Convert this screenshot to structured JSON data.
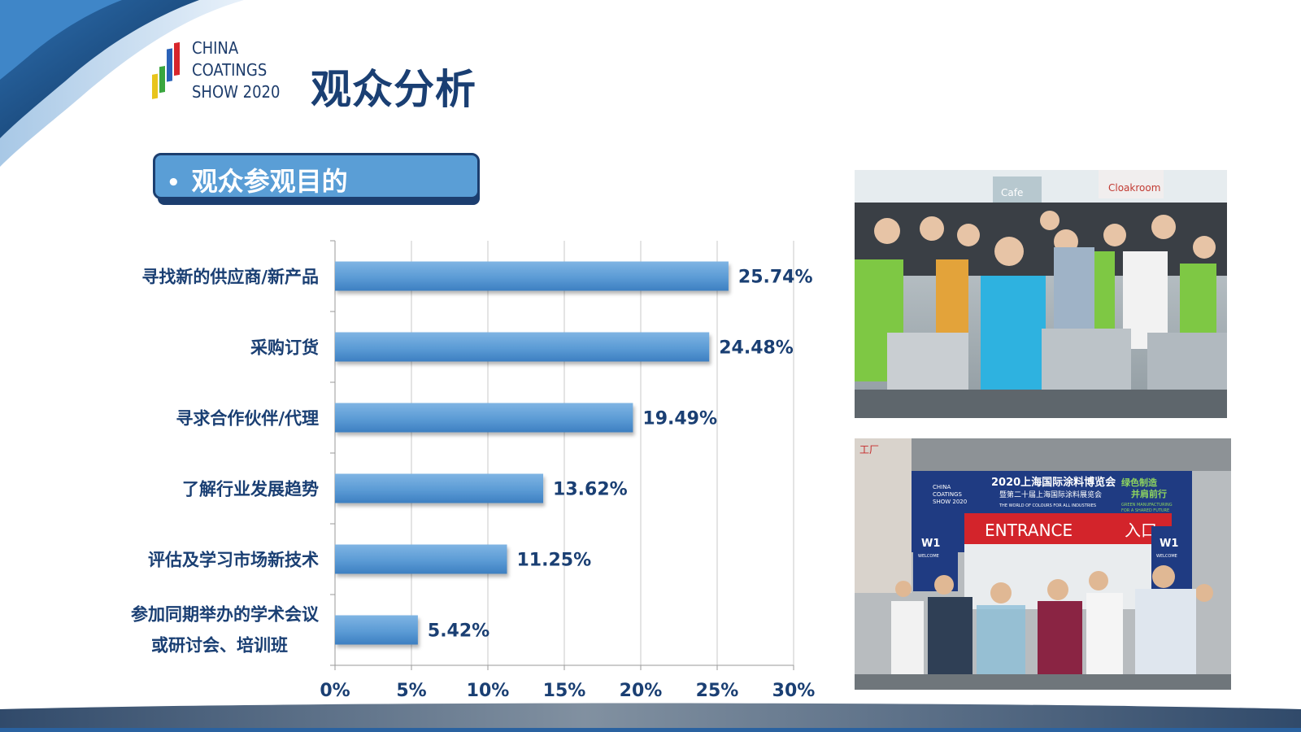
{
  "logo": {
    "lines": [
      "CHINA",
      "COATINGS",
      "SHOW 2020"
    ]
  },
  "page_title": "观众分析",
  "section": {
    "bullet": "•",
    "label": "观众参观目的"
  },
  "colors": {
    "bar": "#5b9bd5",
    "navy": "#1a3f73",
    "accent_blue": "#2e75b6"
  },
  "chart_data": {
    "type": "bar",
    "orientation": "horizontal",
    "categories": [
      [
        "寻找新的供应商/新产品"
      ],
      [
        "采购订货"
      ],
      [
        "寻求合作伙伴/代理"
      ],
      [
        "了解行业发展趋势"
      ],
      [
        "评估及学习市场新技术"
      ],
      [
        "参加同期举办的学术会议",
        "或研讨会、培训班"
      ]
    ],
    "values": [
      25.74,
      24.48,
      19.49,
      13.62,
      11.25,
      5.42
    ],
    "value_labels": [
      "25.74%",
      "24.48%",
      "19.49%",
      "13.62%",
      "11.25%",
      "5.42%"
    ],
    "xlim": [
      0,
      30
    ],
    "xticks": [
      0,
      5,
      10,
      15,
      20,
      25,
      30
    ],
    "xtick_labels": [
      "0%",
      "5%",
      "10%",
      "15%",
      "20%",
      "25%",
      "30%"
    ],
    "grid": "vertical",
    "legend": "none",
    "title": "",
    "xlabel": "",
    "ylabel": ""
  },
  "photos": {
    "top": {
      "signs": [
        "Cloakroom",
        "Cafe"
      ]
    },
    "bottom": {
      "banner_line1": "2020上海国际涂料博览会",
      "banner_line2": "暨第二十届上海国际涂料展览会",
      "banner_sub": "THE WORLD OF COLOURS FOR ALL INDUSTRIES",
      "slogan_line1": "绿色制造",
      "slogan_line2": "并肩前行",
      "slogan_en1": "GREEN MANUFACTURING",
      "slogan_en2": "FOR A SHARED FUTURE",
      "entrance": "ENTRANCE",
      "entrance_cn": "入口",
      "hall": "W1",
      "hall_sub": "WELCOME",
      "factory": "工厂",
      "logo_lines": [
        "CHINA",
        "COATINGS",
        "SHOW 2020"
      ]
    }
  }
}
